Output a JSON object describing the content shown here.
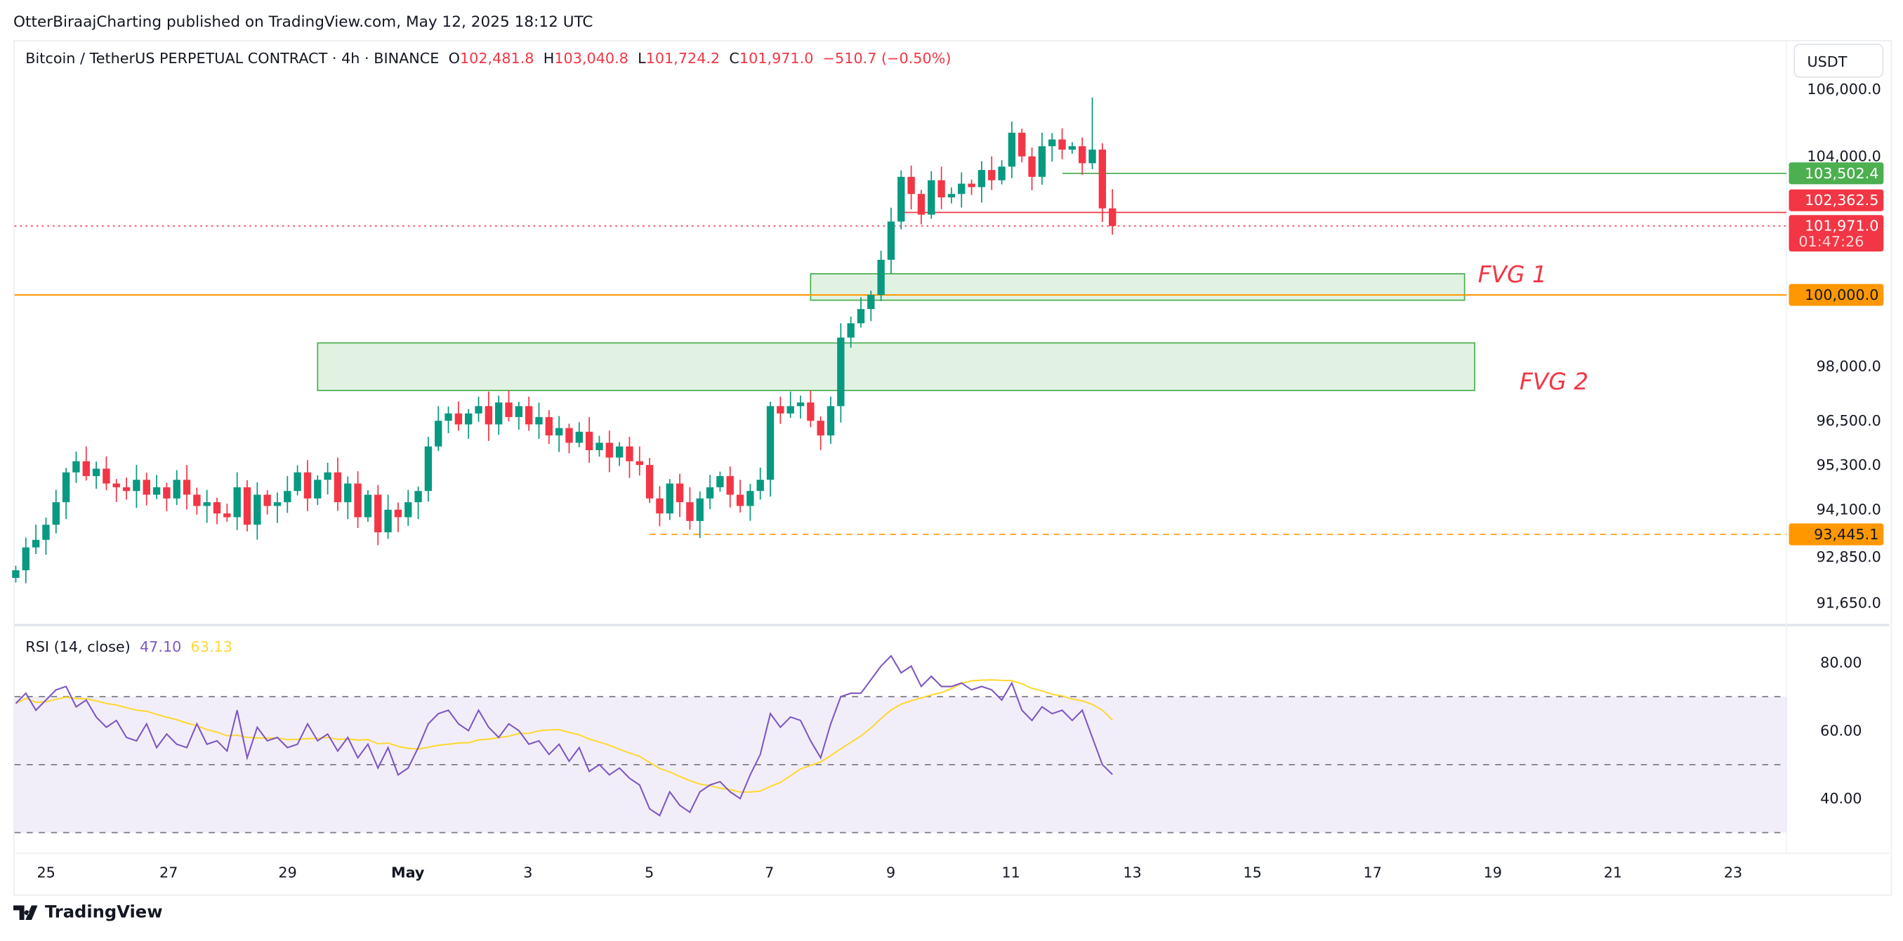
{
  "header": {
    "published": "OtterBiraajCharting published on TradingView.com, May 12, 2025 18:12 UTC"
  },
  "legend": {
    "symbol": "Bitcoin / TetherUS PERPETUAL CONTRACT · 4h · BINANCE",
    "o_label": "O",
    "o": "102,481.8",
    "h_label": "H",
    "h": "103,040.8",
    "l_label": "L",
    "l": "101,724.2",
    "c_label": "C",
    "c": "101,971.0",
    "change": "−510.7 (−0.50%)"
  },
  "currency_button": "USDT",
  "rsi_legend": {
    "name": "RSI (14, close)",
    "rsi": "47.10",
    "ma": "63.13"
  },
  "footer": {
    "brand": "TradingView"
  },
  "colors": {
    "up": "#089981",
    "down": "#f23645",
    "rsi": "#7e57c2",
    "rsi_ma": "#fdd835",
    "orange": "#ff9800",
    "green_line": "#4caf50",
    "fvg_fill": "#e1f2e3",
    "fvg_border": "#4caf50",
    "fvg_label": "#f23645"
  },
  "chart_data": [
    {
      "type": "candlestick",
      "interval": "4h",
      "start": "Apr 24 12:00",
      "price_ticks": [
        "106,000.0",
        "104,000.0",
        "98,000.0",
        "96,500.0",
        "95,300.0",
        "94,100.0",
        "92,850.0",
        "91,650.0"
      ],
      "price_tick_values": [
        106000,
        104000,
        98000,
        96500,
        95300,
        94100,
        92850,
        91650
      ],
      "scale": "log",
      "x_ticks": [
        "25",
        "27",
        "29",
        "May",
        "3",
        "5",
        "7",
        "9",
        "11",
        "13",
        "15",
        "17",
        "19",
        "21",
        "23"
      ],
      "first_open": 92300,
      "closes": [
        92500,
        93100,
        93300,
        93700,
        94300,
        95100,
        95400,
        95000,
        95200,
        94800,
        94700,
        94600,
        94900,
        94500,
        94700,
        94400,
        94900,
        94500,
        94200,
        94300,
        94000,
        93900,
        94700,
        93700,
        94500,
        94200,
        94300,
        94600,
        95100,
        94400,
        94900,
        95100,
        94300,
        94800,
        93900,
        94500,
        93500,
        94100,
        93900,
        94300,
        94600,
        95800,
        96500,
        96700,
        96400,
        96700,
        96900,
        96400,
        97000,
        96600,
        96900,
        96400,
        96600,
        96100,
        96300,
        95900,
        96200,
        95700,
        95900,
        95500,
        95800,
        95400,
        95300,
        94400,
        94000,
        94800,
        94300,
        93800,
        94400,
        94700,
        95000,
        94500,
        94200,
        94600,
        94900,
        96900,
        96700,
        96900,
        97000,
        96500,
        96100,
        96900,
        98800,
        99200,
        99600,
        100000,
        101000,
        102100,
        103400,
        102900,
        102300,
        103300,
        102800,
        102900,
        103200,
        103100,
        103600,
        103300,
        103700,
        104700,
        104000,
        103400,
        104300,
        104500,
        104200,
        104300,
        103800,
        104200,
        102481.8,
        101971
      ],
      "last_candle": {
        "o": 102481.8,
        "h": 103040.8,
        "l": 101724.2,
        "c": 101971.0
      },
      "price_labels": [
        {
          "text": "103,502.4",
          "value": 103502.4,
          "color": "#4caf50"
        },
        {
          "text": "102,362.5",
          "value": 102362.5,
          "color": "#f23645"
        },
        {
          "text": "101,971.0",
          "value": 101971.0,
          "color": "#f23645",
          "countdown": "01:47:26"
        },
        {
          "text": "100,000.0",
          "value": 100000,
          "color": "#ff9800"
        },
        {
          "text": "93,445.1",
          "value": 93445.1,
          "color": "#ff9800"
        }
      ],
      "zones": [
        {
          "label": "FVG 1",
          "top": 100600,
          "bottom": 99850,
          "from": "May 7 16:00",
          "to": "May 18 12:00"
        },
        {
          "label": "FVG 2",
          "top": 98650,
          "bottom": 97330,
          "from": "Apr 29 12:00",
          "to": "May 18 16:00"
        }
      ]
    },
    {
      "type": "line",
      "title": "RSI (14, close)",
      "ylim": [
        25,
        90
      ],
      "y_ticks": [
        "80.00",
        "60.00",
        "40.00"
      ],
      "bands": [
        70,
        50,
        30
      ],
      "rsi": [
        68,
        71,
        66,
        69,
        72,
        73,
        67,
        69,
        64,
        61,
        63,
        58,
        57,
        62,
        55,
        59,
        56,
        55,
        62,
        56,
        57,
        54,
        66,
        52,
        61,
        57,
        58,
        55,
        56,
        62,
        57,
        59,
        54,
        58,
        52,
        56,
        49,
        55,
        47,
        49,
        55,
        62,
        65,
        66,
        62,
        60,
        66,
        61,
        58,
        62,
        60,
        56,
        57,
        53,
        56,
        51,
        55,
        48,
        50,
        47,
        49,
        46,
        44,
        37,
        35,
        42,
        38,
        36,
        42,
        44,
        45,
        42,
        40,
        47,
        53,
        65,
        61,
        64,
        63,
        57,
        52,
        62,
        70,
        71,
        71,
        75,
        79,
        82,
        77,
        79,
        73,
        76,
        73,
        73,
        74,
        72,
        73,
        72,
        69,
        74,
        66,
        63,
        67,
        65,
        66,
        63,
        66,
        58,
        50,
        47.1
      ],
      "ma_length": 14
    }
  ]
}
